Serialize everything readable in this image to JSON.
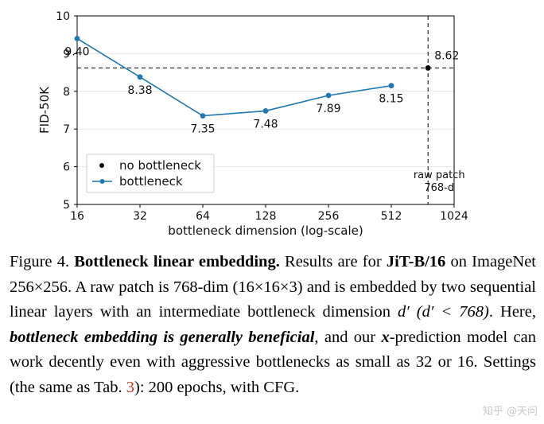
{
  "chart_data": {
    "type": "line",
    "xscale": "log2",
    "xlabel": "bottleneck dimension (log-scale)",
    "ylabel": "FID-50K",
    "x_ticks": [
      16,
      32,
      64,
      128,
      256,
      512,
      1024
    ],
    "x_tick_labels": [
      "16",
      "32",
      "64",
      "128",
      "256",
      "512",
      "1024"
    ],
    "y_ticks": [
      5,
      6,
      7,
      8,
      9,
      10
    ],
    "y_tick_labels": [
      "5",
      "6",
      "7",
      "8",
      "9",
      "10"
    ],
    "xlim": [
      16,
      1024
    ],
    "ylim": [
      5,
      10
    ],
    "grid": "horizontal",
    "series": [
      {
        "name": "bottleneck",
        "color": "#1f77b4",
        "x": [
          16,
          32,
          64,
          128,
          256,
          512
        ],
        "values": [
          9.4,
          8.38,
          7.35,
          7.48,
          7.89,
          8.15
        ],
        "labels": [
          "9.40",
          "8.38",
          "7.35",
          "7.48",
          "7.89",
          "8.15"
        ]
      },
      {
        "name": "no bottleneck",
        "color": "#000000",
        "x": [
          768
        ],
        "values": [
          8.62
        ],
        "labels": [
          "8.62"
        ]
      }
    ],
    "reference_lines": [
      {
        "orientation": "horizontal",
        "value": 8.62,
        "style": "dashed"
      },
      {
        "orientation": "vertical",
        "value": 768,
        "style": "dashed"
      }
    ],
    "annotations": [
      {
        "text_lines": [
          "raw patch",
          "768-d"
        ],
        "x": 768,
        "y": 5.4
      }
    ],
    "legend": {
      "position": "lower-left",
      "entries": [
        {
          "label": "no bottleneck",
          "marker": "dot",
          "color": "#000000"
        },
        {
          "label": "bottleneck",
          "marker": "line-dot",
          "color": "#1f77b4"
        }
      ]
    }
  },
  "caption": {
    "figure_label": "Figure 4.",
    "title": "Bottleneck linear embedding.",
    "t1": " Results are for ",
    "model": "JiT-B/16",
    "t2": " on ImageNet 256×256. A raw patch is 768-dim (16×16×3) and is embedded by two sequential linear layers with an intermediate bottleneck dimension ",
    "math1": "d′ (d′ < 768)",
    "t3": ". Here, ",
    "emphasis": "bottleneck embedding is generally beneficial",
    "t4": ", and our ",
    "x_symbol": "x",
    "t5": "-prediction model can work decently even with aggressive bottlenecks as small as 32 or 16. Settings (the same as Tab. ",
    "tab_ref": "3",
    "t6": "): 200 epochs, with CFG."
  },
  "watermark": "知乎 @天问"
}
